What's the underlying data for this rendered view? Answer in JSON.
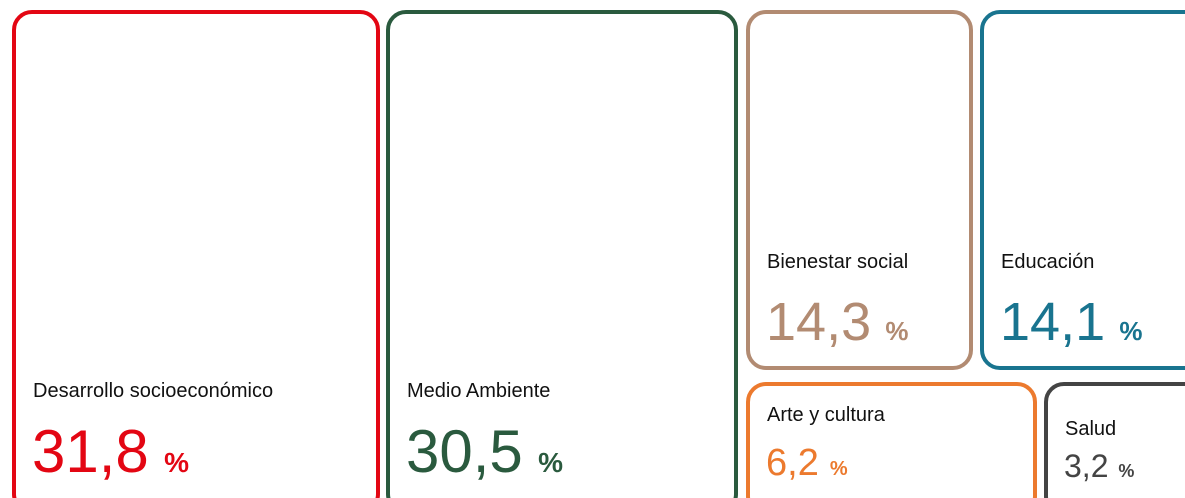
{
  "chart_data": {
    "type": "treemap",
    "categories": [
      "Desarrollo socioeconómico",
      "Medio Ambiente",
      "Bienestar social",
      "Educación",
      "Arte y cultura",
      "Salud"
    ],
    "values": [
      31.8,
      30.5,
      14.3,
      14.1,
      6.2,
      3.2
    ],
    "value_labels": [
      "31,8",
      "30,5",
      "14,3",
      "14,1",
      "6,2",
      "3,2"
    ],
    "unit": "%",
    "colors": [
      "#e30613",
      "#2a5a3e",
      "#b28b72",
      "#19748f",
      "#ec7a2e",
      "#444444"
    ]
  }
}
